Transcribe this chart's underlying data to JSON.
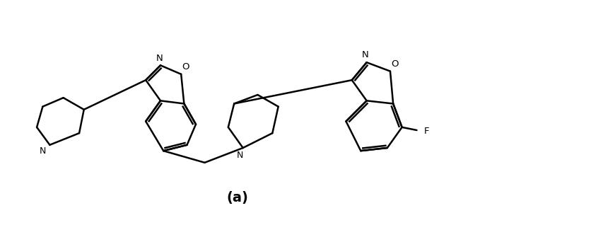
{
  "label": "(a)",
  "label_fontsize": 14,
  "label_bold": true,
  "bg_color": "#ffffff",
  "line_color": "#000000",
  "line_width": 1.8,
  "figsize": [
    8.54,
    3.18
  ],
  "dpi": 100,
  "xlim": [
    0,
    100
  ],
  "ylim": [
    0,
    38
  ]
}
